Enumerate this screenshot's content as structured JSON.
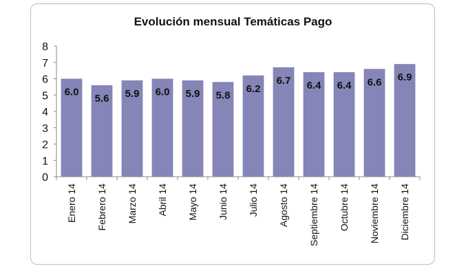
{
  "chart_data": {
    "type": "bar",
    "title": "Evolución mensual Temáticas Pago",
    "categories": [
      "Enero 14",
      "Febrero 14",
      "Marzo 14",
      "Abril 14",
      "Mayo 14",
      "Junio 14",
      "Julio 14",
      "Agosto 14",
      "Septiembre 14",
      "Octubre 14",
      "Noviembre 14",
      "Diciembre 14"
    ],
    "values": [
      6.0,
      5.6,
      5.9,
      6.0,
      5.9,
      5.8,
      6.2,
      6.7,
      6.4,
      6.4,
      6.6,
      6.9
    ],
    "data_labels": [
      "6.0",
      "5.6",
      "5.9",
      "6.0",
      "5.9",
      "5.8",
      "6.2",
      "6.7",
      "6.4",
      "6.4",
      "6.6",
      "6.9"
    ],
    "yticks": [
      "0",
      "1",
      "2",
      "3",
      "4",
      "5",
      "6",
      "7",
      "8"
    ],
    "ylim": [
      0,
      8
    ],
    "xlabel": "",
    "ylabel": "",
    "grid": false,
    "legend": "none",
    "bar_color": "#8585b8"
  }
}
